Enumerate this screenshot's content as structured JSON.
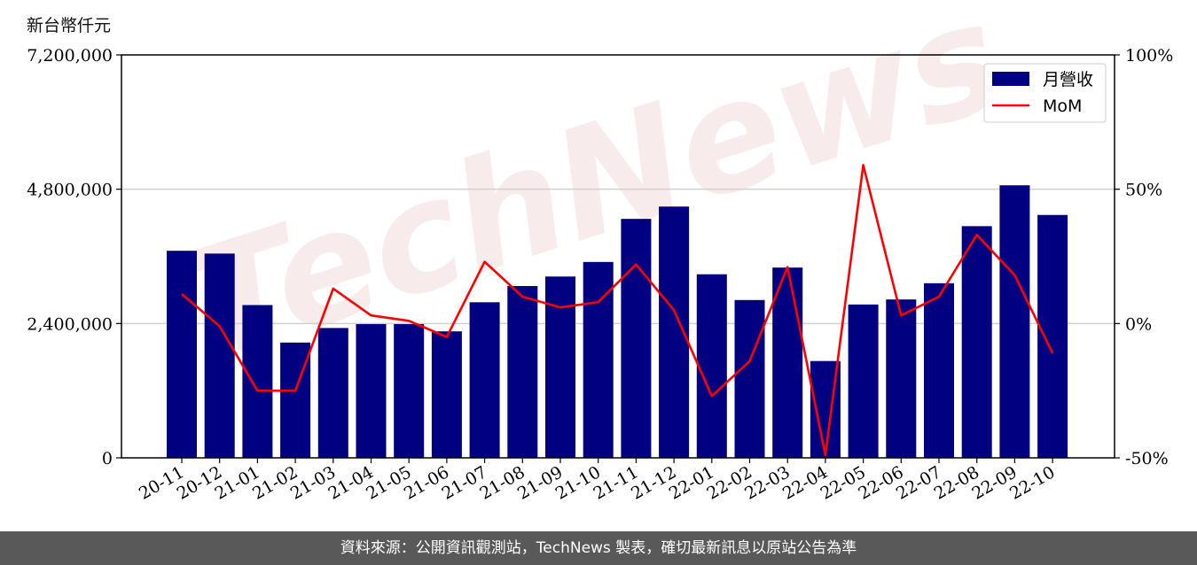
{
  "unit_label": "新台幣仟元",
  "footer": "資料來源：公開資訊觀測站，TechNews 製表，確切最新訊息以原站公告為準",
  "watermark": "TechNews",
  "chart_data": {
    "type": "bar",
    "categories": [
      "20-11",
      "20-12",
      "21-01",
      "21-02",
      "21-03",
      "21-04",
      "21-05",
      "21-06",
      "21-07",
      "21-08",
      "21-09",
      "21-10",
      "21-11",
      "21-12",
      "22-01",
      "22-02",
      "22-03",
      "22-04",
      "22-05",
      "22-06",
      "22-07",
      "22-08",
      "22-09",
      "22-10"
    ],
    "series": [
      {
        "name": "月營收",
        "kind": "bar",
        "axis": "left",
        "color": "#000080",
        "values": [
          3700000,
          3650000,
          2730000,
          2060000,
          2320000,
          2390000,
          2390000,
          2260000,
          2780000,
          3070000,
          3240000,
          3500000,
          4270000,
          4490000,
          3280000,
          2820000,
          3400000,
          1730000,
          2740000,
          2830000,
          3120000,
          4140000,
          4870000,
          4340000
        ]
      },
      {
        "name": "MoM",
        "kind": "line",
        "axis": "right",
        "color": "#ff0000",
        "values": [
          11,
          -1,
          -25,
          -25,
          13,
          3,
          1,
          -5,
          23,
          10,
          6,
          8,
          22,
          5,
          -27,
          -14,
          21,
          -49,
          59,
          3,
          10,
          33,
          18,
          -11
        ]
      }
    ],
    "ylim": [
      0,
      7200000
    ],
    "yticks": [
      "0",
      "2,400,000",
      "4,800,000",
      "7,200,000"
    ],
    "ytick_values": [
      0,
      2400000,
      4800000,
      7200000
    ],
    "y2lim": [
      -50,
      100
    ],
    "y2ticks": [
      "-50%",
      "0%",
      "50%",
      "100%"
    ],
    "y2tick_values": [
      -50,
      0,
      50,
      100
    ],
    "grid": "horizontal",
    "legend": "top-right"
  }
}
